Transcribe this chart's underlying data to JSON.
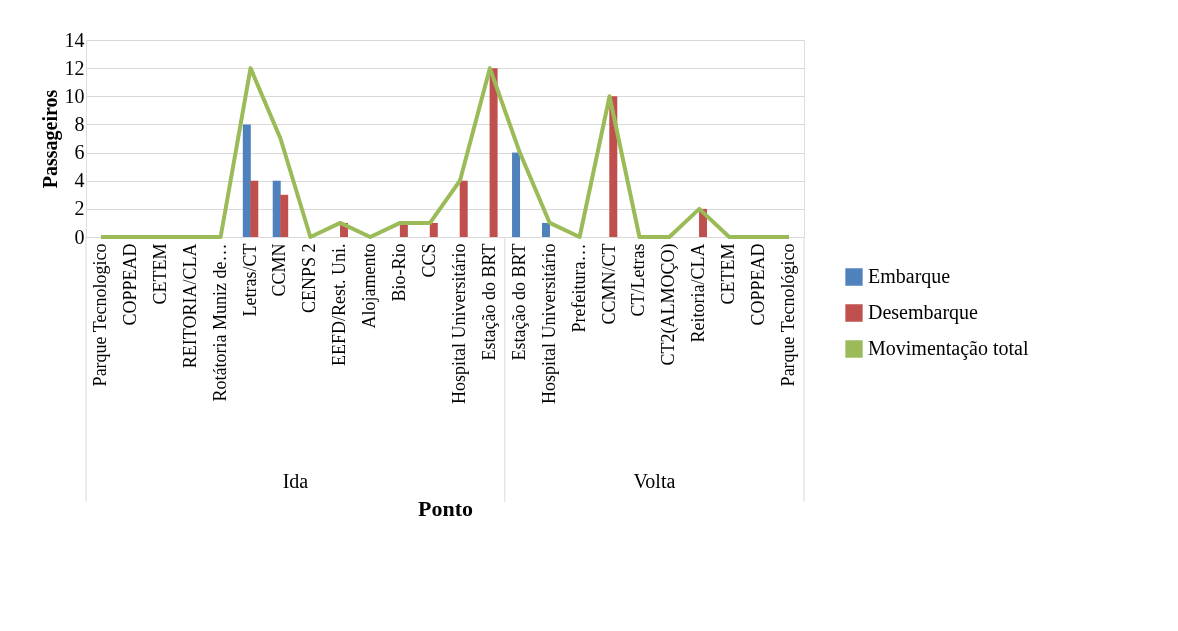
{
  "chart_data": {
    "type": "bar",
    "xlabel": "Ponto",
    "ylabel": "Passageiros",
    "categories": [
      "Parque Tecnologico",
      "COPPEAD",
      "CETEM",
      "REITORIA/CLA",
      "Rotátoria Muniz de…",
      "Letras/CT",
      "CCMN",
      "CENPS 2",
      "EEFD/Rest. Uni.",
      "Alojamento",
      "Bio-Rio",
      "CCS",
      "Hospital Universitário",
      "Estação do BRT",
      "Estação do BRT",
      "Hospital Universitário",
      "Prefeitura…",
      "CCMN/CT",
      "CT/Letras",
      "CT2(ALMOÇO)",
      "Reitoria/CLA",
      "CETEM",
      "COPPEAD",
      "Parque Tecnológico"
    ],
    "series": [
      {
        "name": "Embarque",
        "color": "#4f81bd",
        "values": [
          0,
          0,
          0,
          0,
          0,
          8,
          4,
          0,
          0,
          0,
          0,
          0,
          0,
          0,
          6,
          1,
          0,
          0,
          0,
          0,
          0,
          0,
          0,
          0
        ]
      },
      {
        "name": "Desembarque",
        "color": "#c0504d",
        "values": [
          0,
          0,
          0,
          0,
          0,
          4,
          3,
          0,
          1,
          0,
          1,
          1,
          4,
          12,
          0,
          0,
          0,
          10,
          0,
          0,
          2,
          0,
          0,
          0
        ]
      },
      {
        "name": "Movimentação total",
        "color": "#9bbb59",
        "type": "line",
        "values": [
          0,
          0,
          0,
          0,
          0,
          12,
          7,
          0,
          1,
          0,
          1,
          1,
          4,
          12,
          6,
          1,
          0,
          10,
          0,
          0,
          2,
          0,
          0,
          0
        ]
      }
    ],
    "ylim": [
      0,
      14
    ],
    "yticks": [
      0,
      2,
      4,
      6,
      8,
      10,
      12,
      14
    ],
    "grid": "y",
    "legend": "right",
    "annotations": [
      "Ida",
      "Volta"
    ]
  }
}
